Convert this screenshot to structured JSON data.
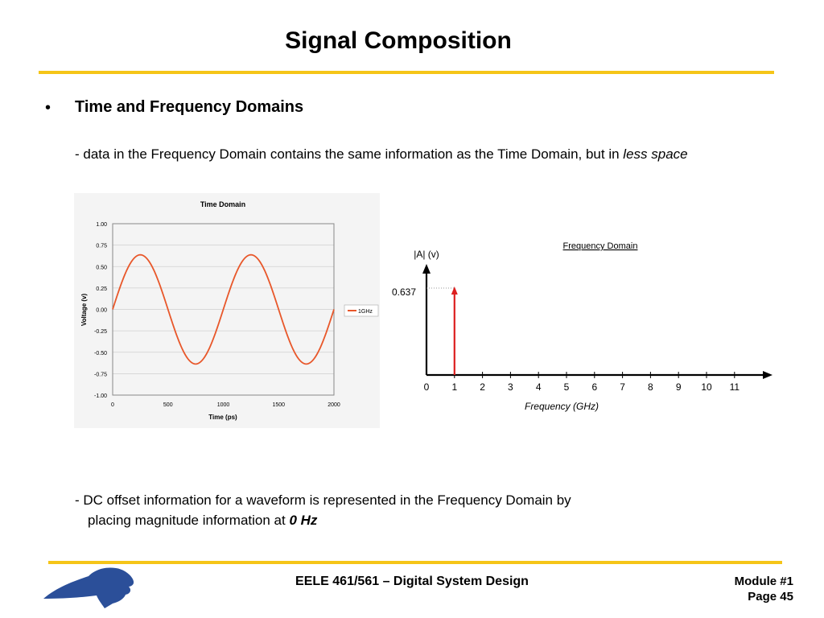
{
  "slide": {
    "title": "Signal Composition",
    "bullet": "•",
    "heading": "Time and Frequency Domains",
    "desc_prefix": "- data in the Frequency Domain contains the same information as the Time Domain, but in ",
    "desc_italic": "less space",
    "dc_line1": "-  DC offset information for a waveform is represented in the Frequency Domain by",
    "dc_line2_prefix": "placing magnitude information at ",
    "dc_line2_bold": "0 Hz"
  },
  "footer": {
    "course": "EELE 461/561 – Digital System Design",
    "module": "Module #1",
    "page": "Page 45",
    "logo_icon": "bobcat-logo-icon",
    "accent_color": "#f5c518",
    "logo_color": "#2b4f99"
  },
  "chart_data": [
    {
      "type": "line",
      "title": "Time Domain",
      "xlabel": "Time (ps)",
      "ylabel": "Voltage (v)",
      "xlim": [
        0,
        2000
      ],
      "ylim": [
        -1.0,
        1.0
      ],
      "x_ticks": [
        "0",
        "500",
        "1000",
        "1500",
        "2000"
      ],
      "y_ticks": [
        "1.00",
        "0.75",
        "0.50",
        "0.25",
        "0.00",
        "-0.25",
        "-0.50",
        "-0.75",
        "-1.00"
      ],
      "grid": true,
      "legend_position": "right",
      "series": [
        {
          "name": "1GHz",
          "color": "#e8572a",
          "x": [
            0,
            125,
            250,
            375,
            500,
            625,
            750,
            875,
            1000,
            1125,
            1250,
            1375,
            1500,
            1625,
            1750,
            1875,
            2000
          ],
          "y": [
            0,
            0.45,
            0.637,
            0.45,
            0,
            -0.45,
            -0.637,
            -0.45,
            0,
            0.45,
            0.637,
            0.45,
            0,
            -0.45,
            -0.637,
            -0.45,
            0
          ]
        }
      ]
    },
    {
      "type": "bar",
      "title": "Frequency Domain",
      "xlabel": "Frequency (GHz)",
      "ylabel": "|A| (v)",
      "x_ticks": [
        "0",
        "1",
        "2",
        "3",
        "4",
        "5",
        "6",
        "7",
        "8",
        "9",
        "10",
        "11"
      ],
      "marked_value_label": "0.637",
      "series": [
        {
          "color": "#dd1f1f",
          "x": [
            1
          ],
          "values": [
            0.637
          ]
        }
      ]
    }
  ]
}
